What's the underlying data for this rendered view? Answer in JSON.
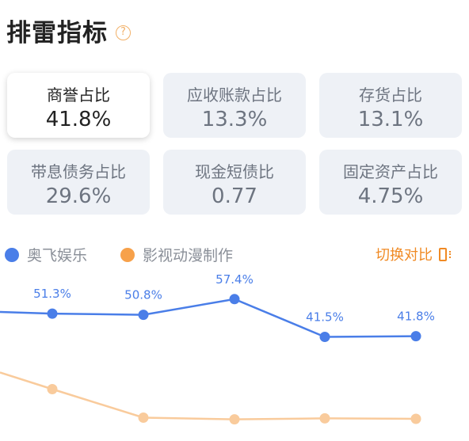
{
  "header": {
    "title": "排雷指标",
    "help_icon": "?"
  },
  "cards": [
    {
      "label": "商誉占比",
      "value": "41.8%",
      "active": true
    },
    {
      "label": "应收账款占比",
      "value": "13.3%",
      "active": false
    },
    {
      "label": "存货占比",
      "value": "13.1%",
      "active": false
    },
    {
      "label": "带息债务占比",
      "value": "29.6%",
      "active": false
    },
    {
      "label": "现金短债比",
      "value": "0.77",
      "active": false
    },
    {
      "label": "固定资产占比",
      "value": "4.75%",
      "active": false
    }
  ],
  "legend": {
    "series1": "奥飞娱乐",
    "series2": "影视动漫制作"
  },
  "switch_label": "切换对比",
  "colors": {
    "series1": "#4a7ee8",
    "series2": "#f9cb9c",
    "series2_legend": "#f7a14a",
    "accent": "#f08a24"
  },
  "chart_data": {
    "type": "line",
    "x": [
      "p0",
      "p1",
      "p2",
      "p3",
      "p4",
      "p5"
    ],
    "series": [
      {
        "name": "奥飞娱乐",
        "values": [
          52.0,
          51.3,
          50.8,
          57.4,
          41.5,
          41.8
        ],
        "labels": [
          "",
          "51.3%",
          "50.8%",
          "57.4%",
          "41.5%",
          "41.8%"
        ]
      },
      {
        "name": "影视动漫制作",
        "values": [
          26.5,
          19.5,
          7.5,
          6.8,
          7.2,
          7.0
        ]
      }
    ],
    "ylim": [
      0,
      70
    ]
  }
}
